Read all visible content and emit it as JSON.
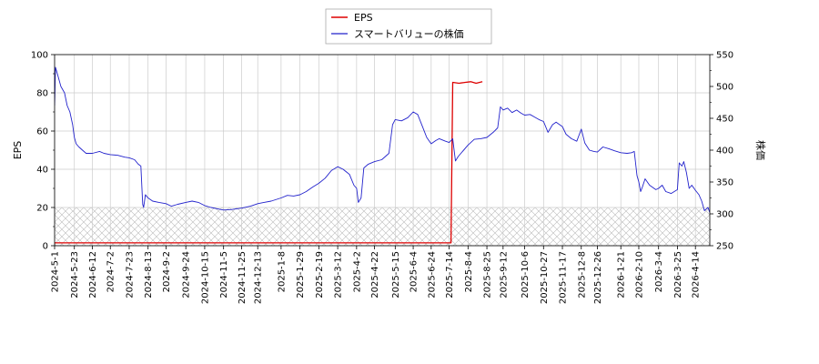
{
  "chart_data": {
    "type": "line",
    "title": "",
    "xlabel": "",
    "ylabel_left": "EPS",
    "ylabel_right": "株価",
    "ylim_left": [
      0,
      100
    ],
    "ylim_right": [
      250,
      550
    ],
    "yticks_left": [
      0,
      20,
      40,
      60,
      80,
      100
    ],
    "yticks_right": [
      250,
      300,
      350,
      400,
      450,
      500,
      550
    ],
    "x_range": [
      "2024-05-01",
      "2026-04-30"
    ],
    "xtick_labels": [
      "2024-5-1",
      "2024-5-23",
      "2024-6-12",
      "2024-7-2",
      "2024-7-23",
      "2024-8-13",
      "2024-9-2",
      "2024-9-24",
      "2024-10-15",
      "2024-11-5",
      "2024-11-25",
      "2024-12-13",
      "2025-1-8",
      "2025-1-29",
      "2025-2-19",
      "2025-3-12",
      "2025-4-2",
      "2025-4-22",
      "2025-5-15",
      "2025-6-4",
      "2025-6-24",
      "2025-7-14",
      "2025-8-4",
      "2025-8-25",
      "2025-9-12",
      "2025-10-6",
      "2025-10-27",
      "2025-11-17",
      "2025-12-8",
      "2025-12-26",
      "2026-1-21",
      "2026-2-10",
      "2026-3-4",
      "2026-3-25",
      "2026-4-14"
    ],
    "grid": true,
    "legend_position": "top-center",
    "hatched_band_left_axis": [
      0,
      20
    ],
    "series": [
      {
        "name": "EPS",
        "axis": "left",
        "color": "#dd0000",
        "points": [
          [
            "2024-05-01",
            1.5
          ],
          [
            "2024-08-14",
            1.5
          ],
          [
            "2024-08-15",
            1.5
          ],
          [
            "2025-07-16",
            1.5
          ],
          [
            "2025-07-18",
            85.5
          ],
          [
            "2025-07-25",
            85.0
          ],
          [
            "2025-08-01",
            85.5
          ],
          [
            "2025-08-07",
            85.8
          ],
          [
            "2025-08-13",
            85.0
          ],
          [
            "2025-08-20",
            85.8
          ]
        ]
      },
      {
        "name": "スマートバリューの株価",
        "axis": "right",
        "color": "#2222cc",
        "points": [
          [
            "2024-05-01",
            470
          ],
          [
            "2024-05-02",
            530
          ],
          [
            "2024-05-05",
            515
          ],
          [
            "2024-05-08",
            500
          ],
          [
            "2024-05-12",
            490
          ],
          [
            "2024-05-15",
            470
          ],
          [
            "2024-05-18",
            460
          ],
          [
            "2024-05-21",
            440
          ],
          [
            "2024-05-23",
            420
          ],
          [
            "2024-05-25",
            410
          ],
          [
            "2024-05-28",
            405
          ],
          [
            "2024-06-01",
            400
          ],
          [
            "2024-06-05",
            395
          ],
          [
            "2024-06-12",
            395
          ],
          [
            "2024-06-20",
            398
          ],
          [
            "2024-06-25",
            395
          ],
          [
            "2024-07-02",
            393
          ],
          [
            "2024-07-10",
            392
          ],
          [
            "2024-07-18",
            389
          ],
          [
            "2024-07-23",
            388
          ],
          [
            "2024-07-29",
            385
          ],
          [
            "2024-08-02",
            378
          ],
          [
            "2024-08-05",
            375
          ],
          [
            "2024-08-07",
            315
          ],
          [
            "2024-08-08",
            310
          ],
          [
            "2024-08-10",
            330
          ],
          [
            "2024-08-13",
            325
          ],
          [
            "2024-08-18",
            320
          ],
          [
            "2024-08-25",
            318
          ],
          [
            "2024-09-02",
            316
          ],
          [
            "2024-09-08",
            312
          ],
          [
            "2024-09-15",
            315
          ],
          [
            "2024-09-24",
            318
          ],
          [
            "2024-10-01",
            320
          ],
          [
            "2024-10-08",
            318
          ],
          [
            "2024-10-15",
            313
          ],
          [
            "2024-10-22",
            310
          ],
          [
            "2024-10-29",
            308
          ],
          [
            "2024-11-05",
            306
          ],
          [
            "2024-11-15",
            307
          ],
          [
            "2024-11-25",
            309
          ],
          [
            "2024-12-05",
            312
          ],
          [
            "2024-12-13",
            316
          ],
          [
            "2024-12-20",
            318
          ],
          [
            "2024-12-28",
            320
          ],
          [
            "2025-01-08",
            325
          ],
          [
            "2025-01-15",
            329
          ],
          [
            "2025-01-22",
            328
          ],
          [
            "2025-01-29",
            330
          ],
          [
            "2025-02-05",
            335
          ],
          [
            "2025-02-12",
            342
          ],
          [
            "2025-02-19",
            348
          ],
          [
            "2025-02-26",
            356
          ],
          [
            "2025-03-05",
            368
          ],
          [
            "2025-03-12",
            374
          ],
          [
            "2025-03-18",
            370
          ],
          [
            "2025-03-25",
            362
          ],
          [
            "2025-03-30",
            345
          ],
          [
            "2025-04-02",
            340
          ],
          [
            "2025-04-04",
            318
          ],
          [
            "2025-04-07",
            325
          ],
          [
            "2025-04-10",
            372
          ],
          [
            "2025-04-15",
            378
          ],
          [
            "2025-04-22",
            382
          ],
          [
            "2025-04-30",
            385
          ],
          [
            "2025-05-08",
            395
          ],
          [
            "2025-05-12",
            440
          ],
          [
            "2025-05-15",
            448
          ],
          [
            "2025-05-22",
            446
          ],
          [
            "2025-05-29",
            451
          ],
          [
            "2025-06-04",
            460
          ],
          [
            "2025-06-09",
            456
          ],
          [
            "2025-06-14",
            438
          ],
          [
            "2025-06-19",
            420
          ],
          [
            "2025-06-24",
            410
          ],
          [
            "2025-06-29",
            415
          ],
          [
            "2025-07-03",
            418
          ],
          [
            "2025-07-10",
            414
          ],
          [
            "2025-07-14",
            412
          ],
          [
            "2025-07-18",
            418
          ],
          [
            "2025-07-21",
            383
          ],
          [
            "2025-07-24",
            390
          ],
          [
            "2025-08-04",
            408
          ],
          [
            "2025-08-11",
            417
          ],
          [
            "2025-08-18",
            418
          ],
          [
            "2025-08-25",
            420
          ],
          [
            "2025-09-01",
            428
          ],
          [
            "2025-09-06",
            435
          ],
          [
            "2025-09-09",
            468
          ],
          [
            "2025-09-12",
            463
          ],
          [
            "2025-09-17",
            466
          ],
          [
            "2025-09-22",
            459
          ],
          [
            "2025-09-27",
            463
          ],
          [
            "2025-10-02",
            458
          ],
          [
            "2025-10-06",
            455
          ],
          [
            "2025-10-12",
            456
          ],
          [
            "2025-10-17",
            452
          ],
          [
            "2025-10-22",
            448
          ],
          [
            "2025-10-27",
            445
          ],
          [
            "2025-11-01",
            428
          ],
          [
            "2025-11-06",
            440
          ],
          [
            "2025-11-10",
            444
          ],
          [
            "2025-11-17",
            437
          ],
          [
            "2025-11-21",
            425
          ],
          [
            "2025-11-27",
            418
          ],
          [
            "2025-12-03",
            414
          ],
          [
            "2025-12-08",
            433
          ],
          [
            "2025-12-12",
            411
          ],
          [
            "2025-12-17",
            400
          ],
          [
            "2025-12-22",
            398
          ],
          [
            "2025-12-26",
            397
          ],
          [
            "2026-01-01",
            405
          ],
          [
            "2026-01-08",
            402
          ],
          [
            "2026-01-14",
            399
          ],
          [
            "2026-01-21",
            396
          ],
          [
            "2026-01-28",
            395
          ],
          [
            "2026-02-02",
            396
          ],
          [
            "2026-02-05",
            398
          ],
          [
            "2026-02-08",
            360
          ],
          [
            "2026-02-10",
            350
          ],
          [
            "2026-02-12",
            335
          ],
          [
            "2026-02-14",
            342
          ],
          [
            "2026-02-17",
            355
          ],
          [
            "2026-02-22",
            345
          ],
          [
            "2026-03-01",
            338
          ],
          [
            "2026-03-04",
            340
          ],
          [
            "2026-03-08",
            345
          ],
          [
            "2026-03-12",
            335
          ],
          [
            "2026-03-18",
            332
          ],
          [
            "2026-03-25",
            338
          ],
          [
            "2026-03-27",
            380
          ],
          [
            "2026-03-30",
            375
          ],
          [
            "2026-04-01",
            382
          ],
          [
            "2026-04-04",
            365
          ],
          [
            "2026-04-07",
            340
          ],
          [
            "2026-04-10",
            345
          ],
          [
            "2026-04-14",
            337
          ],
          [
            "2026-04-18",
            330
          ],
          [
            "2026-04-21",
            320
          ],
          [
            "2026-04-24",
            305
          ],
          [
            "2026-04-28",
            310
          ],
          [
            "2026-04-30",
            302
          ]
        ]
      }
    ]
  }
}
